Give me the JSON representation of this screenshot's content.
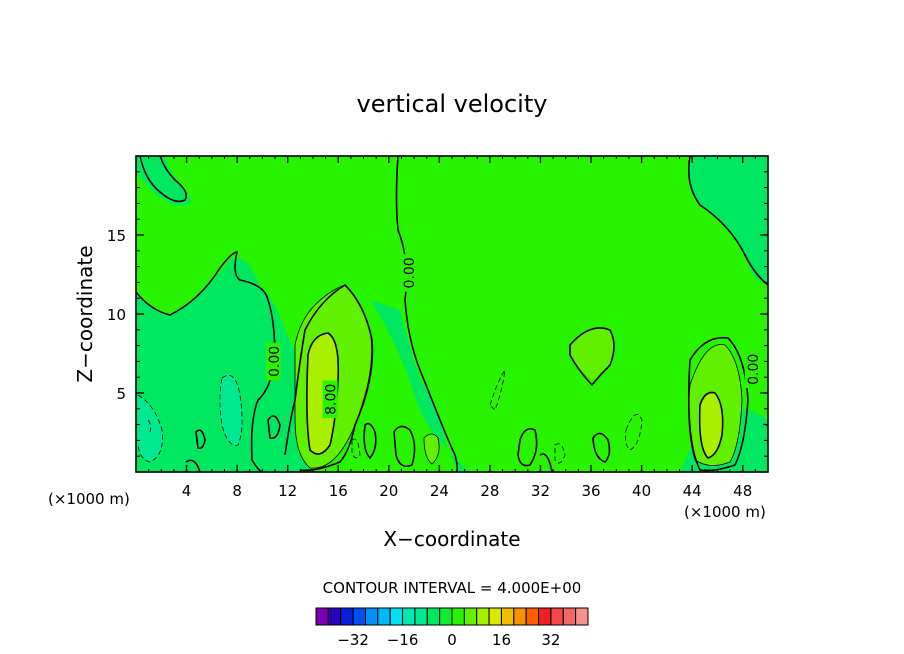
{
  "chart_data": {
    "type": "heatmap",
    "title": "vertical velocity",
    "xlabel": "X−coordinate",
    "ylabel": "Z−coordinate",
    "x_unit_left": "(×1000 m)",
    "x_unit_right": "(×1000 m)",
    "xlim": [
      0,
      50
    ],
    "ylim": [
      0,
      20
    ],
    "x_ticks": [
      4,
      8,
      12,
      16,
      20,
      24,
      28,
      32,
      36,
      40,
      44,
      48
    ],
    "y_ticks": [
      5,
      10,
      15
    ],
    "contour_interval_text": "CONTOUR INTERVAL = 4.000E+00",
    "contour_labels": [
      {
        "text": "0.00",
        "x": 10.9,
        "y": 7.0
      },
      {
        "text": "8.00",
        "x": 15.4,
        "y": 4.6
      },
      {
        "text": "0.00",
        "x": 21.6,
        "y": 12.6
      },
      {
        "text": "0.00",
        "x": 48.8,
        "y": 6.5
      }
    ],
    "colorbar": {
      "colors": [
        "#7a00b0",
        "#2c00b8",
        "#0a20d8",
        "#0050f0",
        "#0090f8",
        "#00b8f8",
        "#00e0f0",
        "#00e8b8",
        "#00e890",
        "#00e860",
        "#10ec30",
        "#28f400",
        "#60f000",
        "#a8f000",
        "#d8e800",
        "#f0c000",
        "#f89000",
        "#f86000",
        "#f02020",
        "#f04848",
        "#f06868",
        "#f89090"
      ],
      "tick_labels": [
        "−32",
        "−16",
        "0",
        "16",
        "32"
      ],
      "tick_values": [
        -32,
        -16,
        0,
        16,
        32
      ]
    },
    "field": {
      "background_color": "#28f400",
      "negative_color": "#00e860",
      "negative_strong_color": "#00e890",
      "positive_color": "#60f000",
      "positive_strong_color": "#a8f000"
    }
  }
}
